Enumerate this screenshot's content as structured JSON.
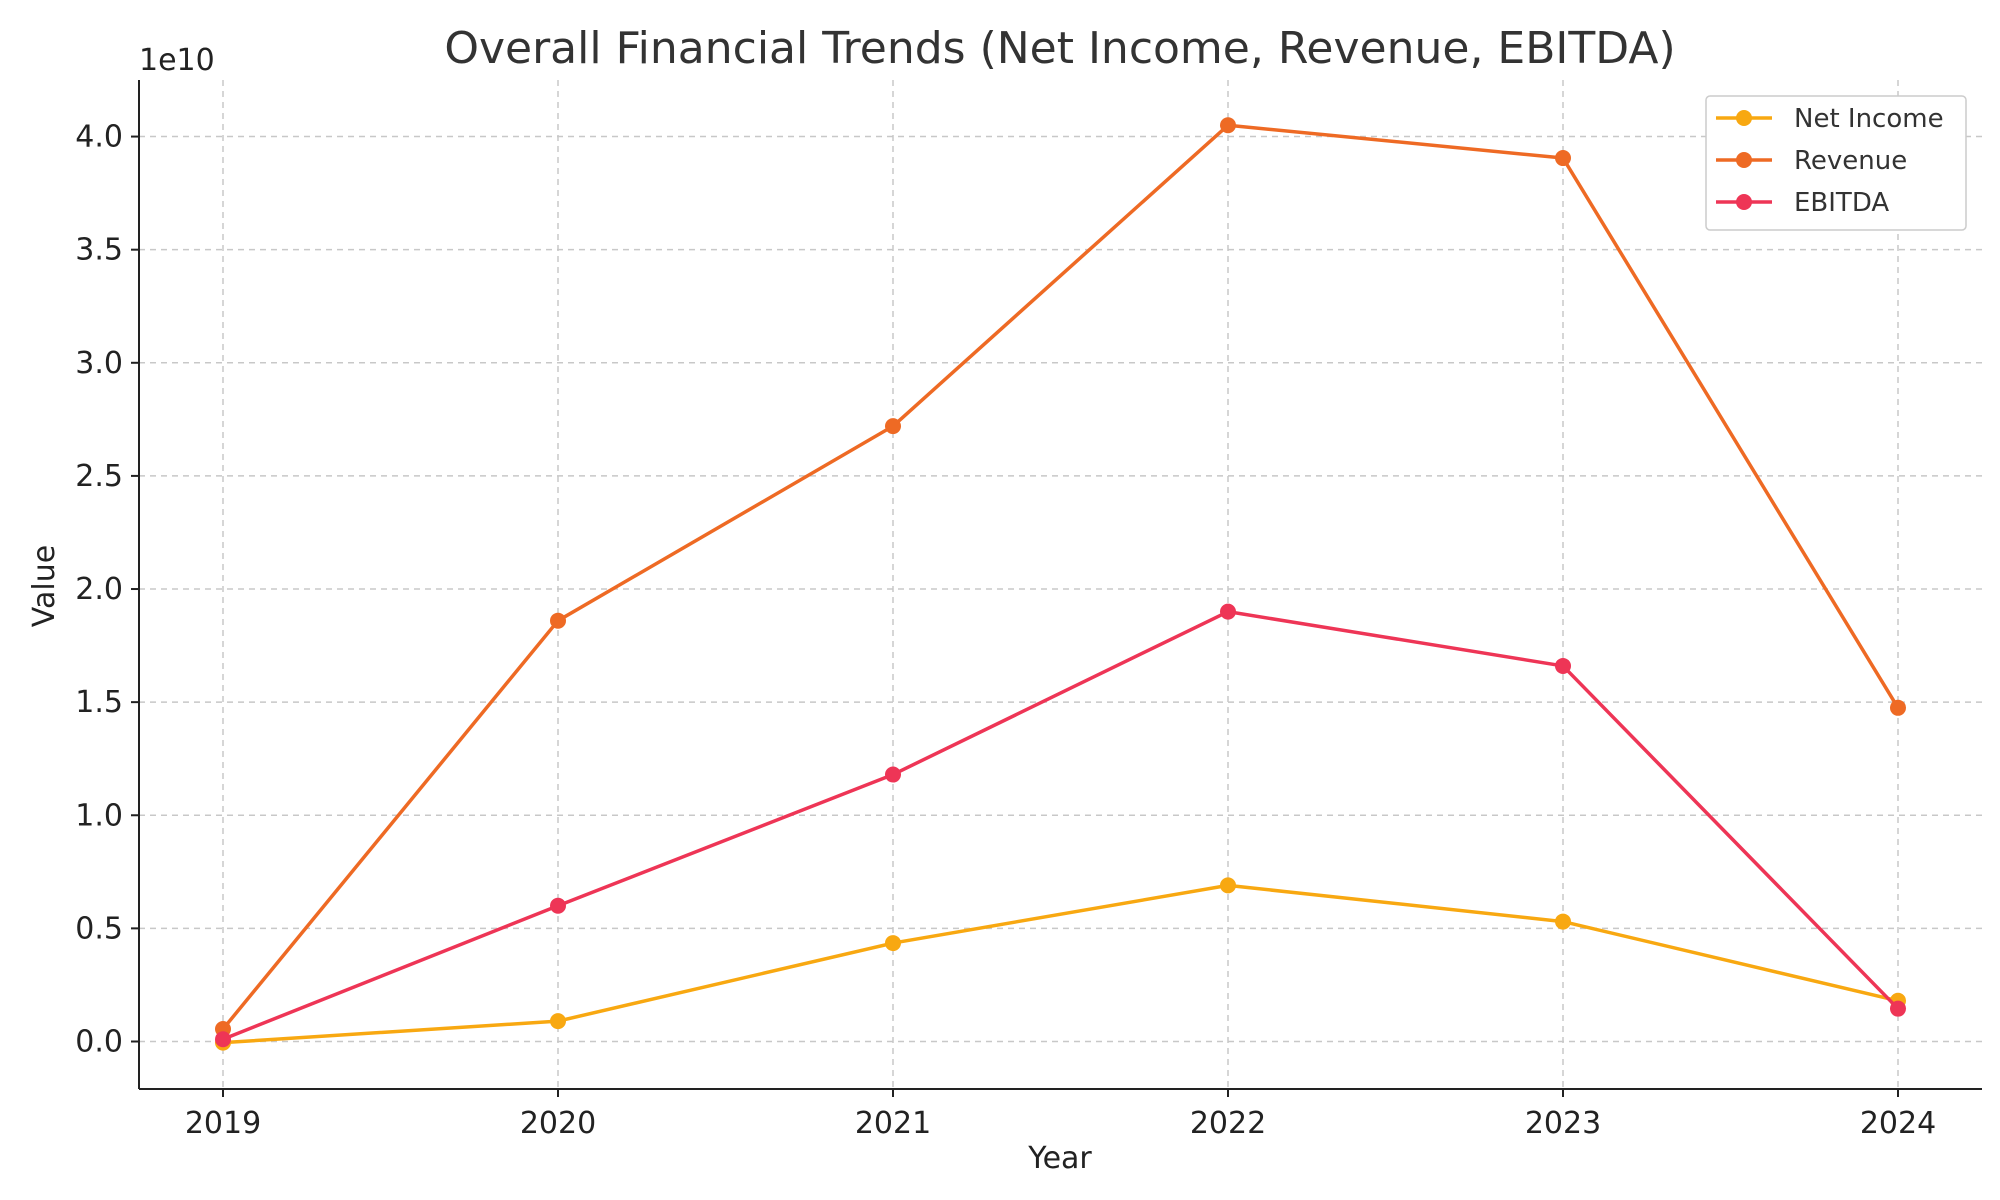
{
  "chart_data": {
    "type": "line",
    "title": "Overall Financial Trends (Net Income, Revenue, EBITDA)",
    "xlabel": "Year",
    "ylabel": "Value",
    "y_offset_label": "1e10",
    "categories": [
      "2019",
      "2020",
      "2021",
      "2022",
      "2023",
      "2024"
    ],
    "ylim": [
      -2100000000.0,
      42500000000.0
    ],
    "yticks": [
      0,
      5000000000.0,
      10000000000.0,
      15000000000.0,
      20000000000.0,
      25000000000.0,
      30000000000.0,
      35000000000.0,
      40000000000.0
    ],
    "ytick_labels": [
      "0.0",
      "0.5",
      "1.0",
      "1.5",
      "2.0",
      "2.5",
      "3.0",
      "3.5",
      "4.0"
    ],
    "grid": true,
    "legend_position": "top-right",
    "series": [
      {
        "name": "Net Income",
        "color": "#F8A811",
        "values": [
          -50000000.0,
          900000000.0,
          4350000000.0,
          6900000000.0,
          5300000000.0,
          1800000000.0
        ]
      },
      {
        "name": "Revenue",
        "color": "#EE6A24",
        "values": [
          550000000.0,
          18600000000.0,
          27200000000.0,
          40500000000.0,
          39050000000.0,
          14750000000.0
        ]
      },
      {
        "name": "EBITDA",
        "color": "#EE3556",
        "values": [
          100000000.0,
          6000000000.0,
          11800000000.0,
          19000000000.0,
          16600000000.0,
          1450000000.0
        ]
      }
    ]
  }
}
